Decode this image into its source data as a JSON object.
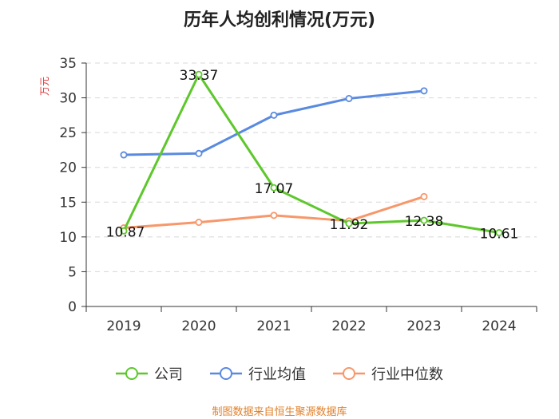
{
  "colors": {
    "company": "#5ec72c",
    "industry_avg": "#5a8ae0",
    "industry_median": "#f7976a",
    "ylabel": "#e03030",
    "source": "#e0802a",
    "axis": "#333333",
    "grid": "#d8d8d8"
  },
  "chart_data": {
    "type": "line",
    "title": "历年人均创利情况(万元)",
    "ylabel": "万元",
    "xlabel": "",
    "categories": [
      "2019",
      "2020",
      "2021",
      "2022",
      "2023",
      "2024"
    ],
    "ylim": [
      0,
      35
    ],
    "yticks": [
      0,
      5,
      10,
      15,
      20,
      25,
      30,
      35
    ],
    "grid": true,
    "legend_position": "bottom-center",
    "series": [
      {
        "key": "company",
        "name": "公司",
        "values": [
          10.87,
          33.37,
          17.07,
          11.92,
          12.38,
          10.61
        ],
        "labels": [
          "10.87",
          "33.37",
          "17.07",
          "11.92",
          "12.38",
          "10.61"
        ]
      },
      {
        "key": "industry_avg",
        "name": "行业均值",
        "values": [
          21.8,
          22.0,
          27.5,
          29.9,
          31.0,
          null
        ]
      },
      {
        "key": "industry_median",
        "name": "行业中位数",
        "values": [
          11.3,
          12.1,
          13.1,
          12.3,
          15.8,
          null
        ]
      }
    ],
    "source": "制图数据来自恒生聚源数据库"
  }
}
